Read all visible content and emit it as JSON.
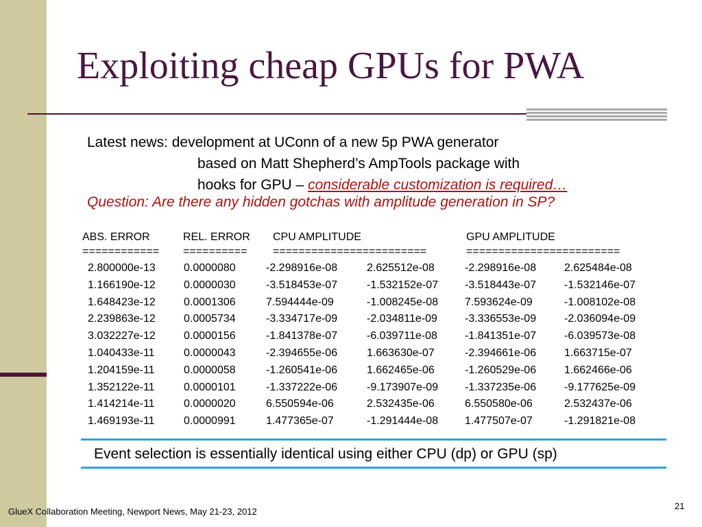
{
  "title": "Exploiting cheap GPUs for PWA",
  "news": {
    "line1": "Latest news:  development at UConn of a new 5p PWA generator",
    "line2": "based on Matt Shepherd’s AmpTools package with",
    "line3_prefix": "hooks for GPU – ",
    "line3_emphasis": "considerable customization is required…"
  },
  "question": "Question: Are there any hidden gotchas with amplitude generation in SP?",
  "table": {
    "headers": [
      "ABS. ERROR",
      "REL. ERROR",
      "CPU AMPLITUDE",
      "",
      "GPU AMPLITUDE",
      ""
    ],
    "separators": [
      "============",
      "==========",
      "========================",
      "",
      "========================",
      ""
    ],
    "rows": [
      [
        "2.800000e-13",
        "0.0000080",
        "-2.298916e-08",
        "2.625512e-08",
        "-2.298916e-08",
        "2.625484e-08"
      ],
      [
        "1.166190e-12",
        "0.0000030",
        "-3.518453e-07",
        "-1.532152e-07",
        "-3.518443e-07",
        "-1.532146e-07"
      ],
      [
        "1.648423e-12",
        "0.0001306",
        "7.594444e-09",
        "-1.008245e-08",
        "7.593624e-09",
        "-1.008102e-08"
      ],
      [
        "2.239863e-12",
        "0.0005734",
        "-3.334717e-09",
        "-2.034811e-09",
        "-3.336553e-09",
        "-2.036094e-09"
      ],
      [
        "3.032227e-12",
        "0.0000156",
        "-1.841378e-07",
        "-6.039711e-08",
        "-1.841351e-07",
        "-6.039573e-08"
      ],
      [
        "1.040433e-11",
        "0.0000043",
        "-2.394655e-06",
        "1.663630e-07",
        "-2.394661e-06",
        "1.663715e-07"
      ],
      [
        "1.204159e-11",
        "0.0000058",
        "-1.260541e-06",
        "1.662465e-06",
        "-1.260529e-06",
        "1.662466e-06"
      ],
      [
        "1.352122e-11",
        "0.0000101",
        "-1.337222e-06",
        "-9.173907e-09",
        "-1.337235e-06",
        "-9.177625e-09"
      ],
      [
        "1.414214e-11",
        "0.0000020",
        "6.550594e-06",
        "2.532435e-06",
        "6.550580e-06",
        "2.532437e-06"
      ],
      [
        "1.469193e-11",
        "0.0000991",
        "1.477365e-07",
        "-1.291444e-08",
        "1.477507e-07",
        "-1.291821e-08"
      ]
    ]
  },
  "summary": "Event selection is essentially identical using either CPU (dp) or GPU (sp)",
  "footer": "GlueX Collaboration Meeting, Newport News, May 21-23, 2012",
  "page_number": "21",
  "colors": {
    "title": "#4a1640",
    "emphasis": "#b01010",
    "side_band": "#cfc9a0",
    "accent_line": "#29a3e0"
  }
}
